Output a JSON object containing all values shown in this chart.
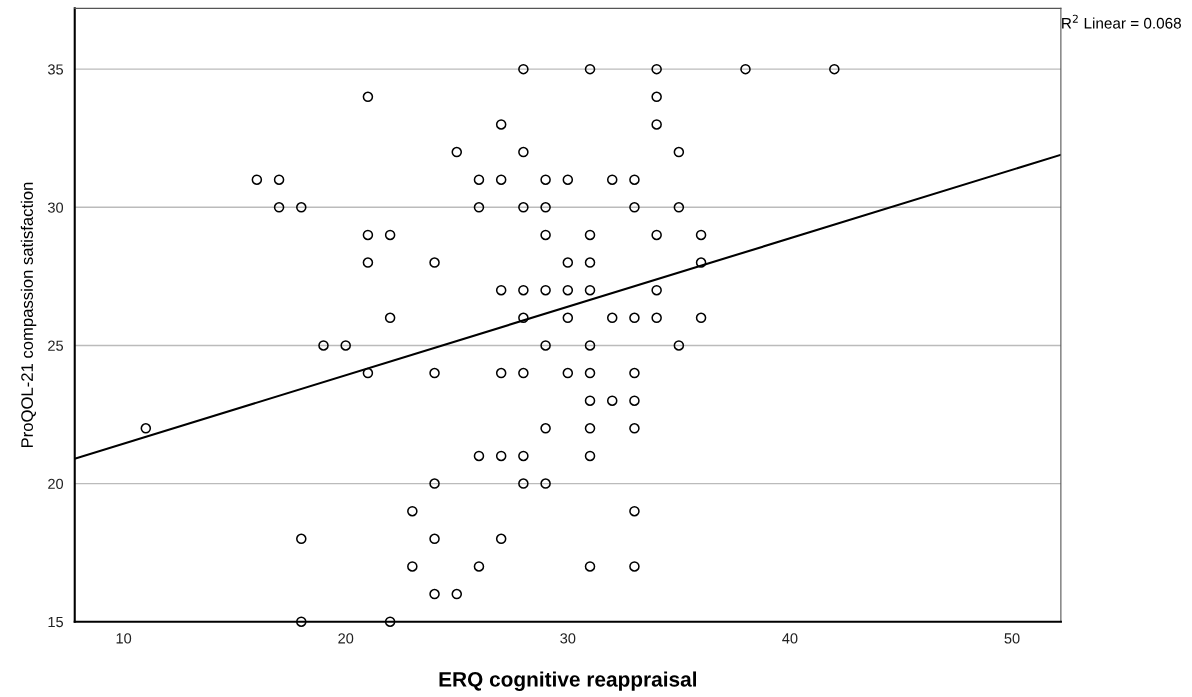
{
  "chart_data": {
    "type": "scatter",
    "xlabel": "ERQ cognitive reappraisal",
    "ylabel": "ProQOL-21 compassion satisfaction",
    "annotations": [
      "R$^{2}$ Linear = 0.068"
    ],
    "xlim": [
      7.8,
      52.2
    ],
    "xticks": [
      10,
      20,
      30,
      40,
      50
    ],
    "ylim": [
      15,
      37.2
    ],
    "yticks": [
      15,
      20,
      25,
      30,
      35
    ],
    "grid": "y",
    "series": [
      {
        "marker": "circle",
        "color": "#000000",
        "x": [
          28,
          31,
          34,
          38,
          42,
          21,
          34,
          27,
          34,
          25,
          28,
          35,
          16,
          17,
          26,
          27,
          29,
          30,
          32,
          33,
          17,
          18,
          26,
          28,
          29,
          33,
          35,
          21,
          22,
          29,
          31,
          34,
          36,
          21,
          24,
          30,
          31,
          36,
          27,
          28,
          29,
          30,
          31,
          34,
          22,
          28,
          30,
          32,
          33,
          34,
          36,
          19,
          20,
          29,
          31,
          35,
          21,
          24,
          27,
          28,
          30,
          31,
          33,
          31,
          32,
          33,
          11,
          29,
          31,
          33,
          26,
          27,
          28,
          31,
          24,
          28,
          29,
          23,
          33,
          18,
          24,
          27,
          23,
          26,
          31,
          33,
          24,
          25,
          18,
          22
        ],
        "values": [
          35,
          35,
          35,
          35,
          35,
          34,
          34,
          33,
          33,
          32,
          32,
          32,
          31,
          31,
          31,
          31,
          31,
          31,
          31,
          31,
          30,
          30,
          30,
          30,
          30,
          30,
          30,
          29,
          29,
          29,
          29,
          29,
          29,
          28,
          28,
          28,
          28,
          28,
          27,
          27,
          27,
          27,
          27,
          27,
          26,
          26,
          26,
          26,
          26,
          26,
          26,
          25,
          25,
          25,
          25,
          25,
          24,
          24,
          24,
          24,
          24,
          24,
          24,
          23,
          23,
          23,
          22,
          22,
          22,
          22,
          21,
          21,
          21,
          21,
          20,
          20,
          20,
          19,
          19,
          18,
          18,
          18,
          17,
          17,
          17,
          17,
          16,
          16,
          15,
          15
        ]
      },
      {
        "type": "line",
        "marker": "none",
        "color": "#000000",
        "x": [
          7.8,
          52.2
        ],
        "values": [
          20.9,
          31.9
        ]
      }
    ]
  }
}
